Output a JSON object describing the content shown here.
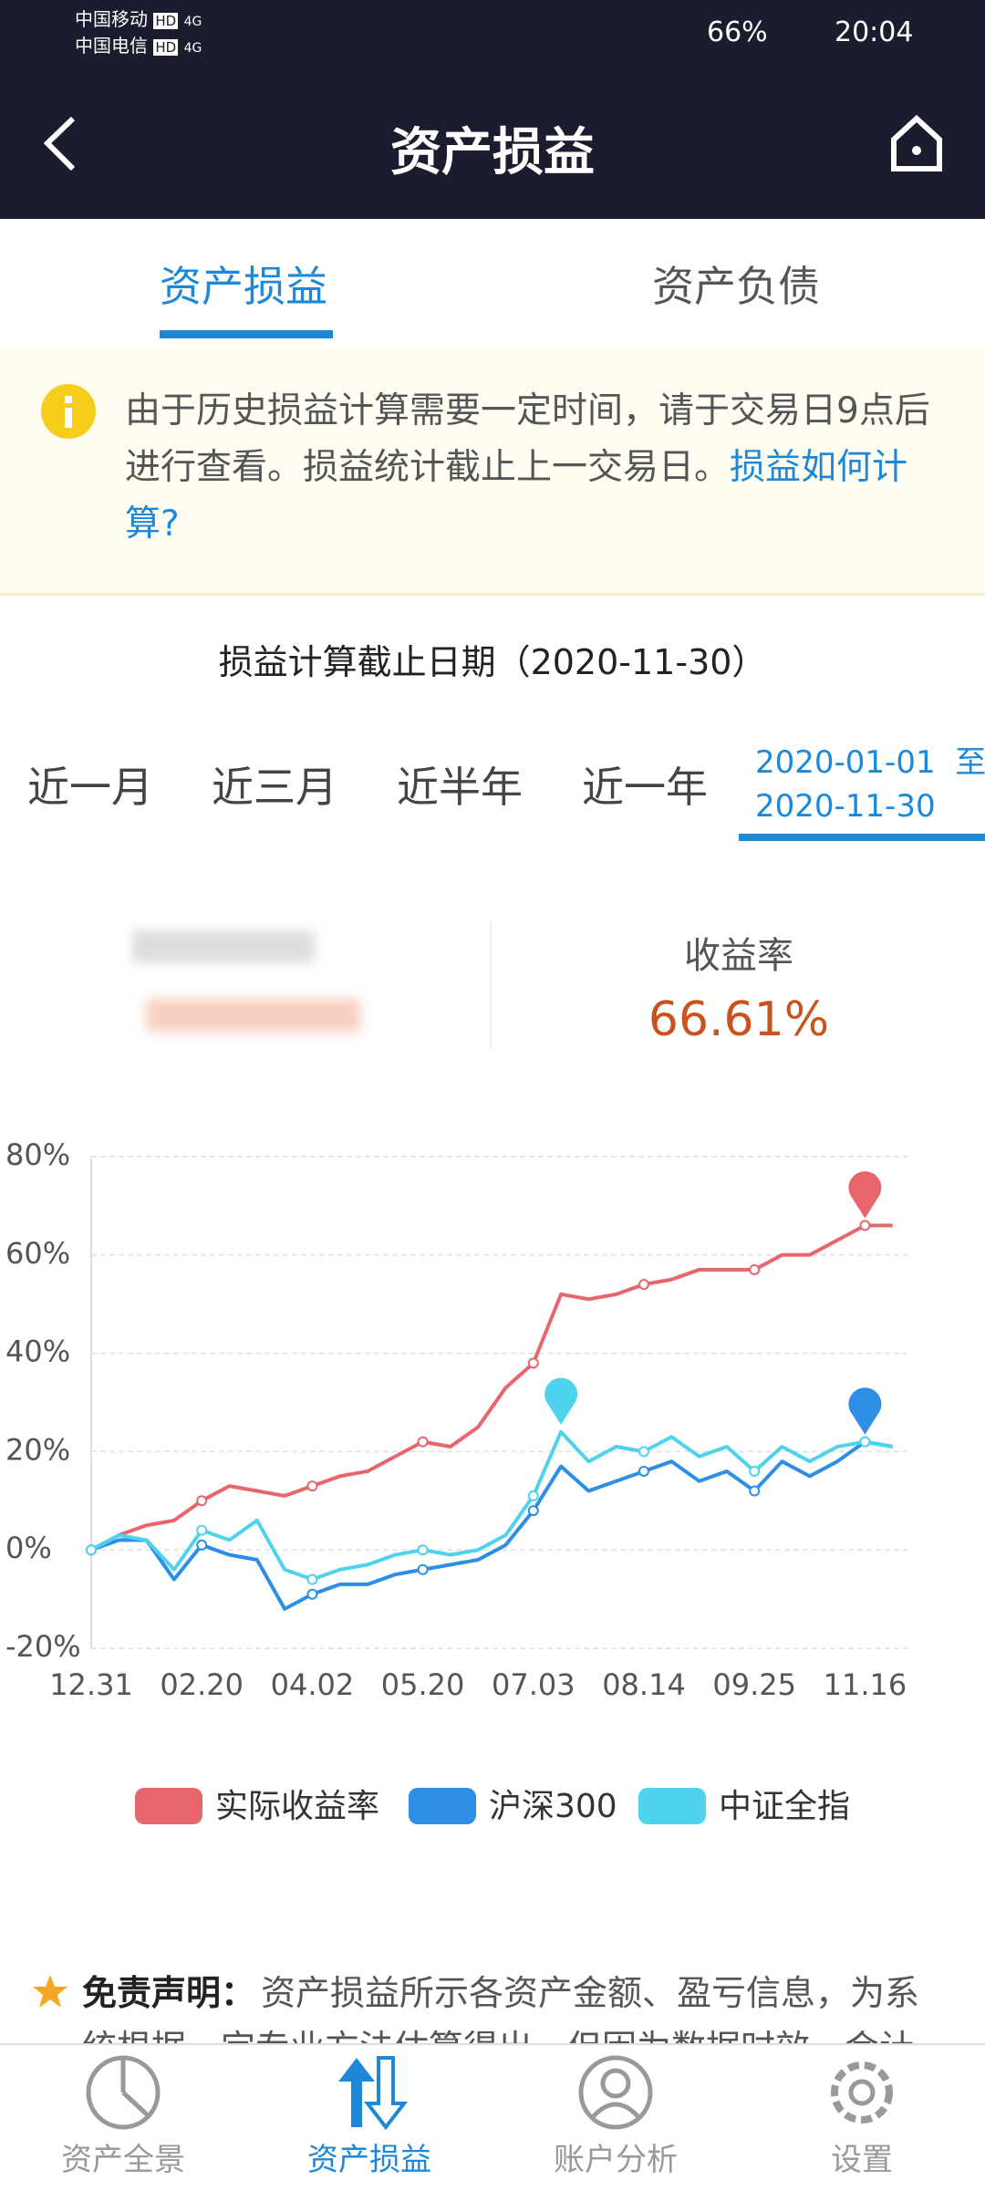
{
  "status_bar": {
    "carrier1": "中国移动",
    "carrier2": "中国电信",
    "badge": "HD",
    "network": "4G",
    "battery": "66%",
    "time": "20:04"
  },
  "header": {
    "title": "资产损益"
  },
  "tabs": [
    "资产损益",
    "资产负债"
  ],
  "notice": {
    "text": "由于历史损益计算需要一定时间，请于交易日9点后进行查看。损益统计截止上一交易日。",
    "link": "损益如何计算?"
  },
  "cutoff_date": "损益计算截止日期（2020-11-30）",
  "periods": [
    "近一月",
    "近三月",
    "近半年",
    "近一年"
  ],
  "custom_range": {
    "start": "2020-01-01",
    "separator": "至",
    "end": "2020-11-30"
  },
  "summary": {
    "label": "收益率",
    "value": "66.61%"
  },
  "chart_data": {
    "type": "line",
    "categories": [
      "12.31",
      null,
      null,
      null,
      "02.20",
      null,
      null,
      null,
      "04.02",
      null,
      null,
      null,
      "05.20",
      null,
      null,
      null,
      "07.03",
      null,
      null,
      null,
      "08.14",
      null,
      null,
      null,
      "09.25",
      null,
      null,
      null,
      "11.16",
      null
    ],
    "series": [
      {
        "name": "实际收益率",
        "color": "#e8666b",
        "values": [
          0,
          3,
          5,
          6,
          10,
          13,
          12,
          11,
          13,
          15,
          16,
          19,
          22,
          21,
          25,
          33,
          38,
          52,
          51,
          52,
          54,
          55,
          57,
          57,
          57,
          60,
          60,
          63,
          66,
          66
        ]
      },
      {
        "name": "沪深300",
        "color": "#2e8ee6",
        "values": [
          0,
          2,
          2,
          -6,
          1,
          -1,
          -2,
          -12,
          -9,
          -7,
          -7,
          -5,
          -4,
          -3,
          -2,
          1,
          8,
          17,
          12,
          14,
          16,
          18,
          14,
          16,
          12,
          18,
          15,
          18,
          22,
          21
        ]
      },
      {
        "name": "中证全指",
        "color": "#4fd3ec",
        "values": [
          0,
          3,
          2,
          -4,
          4,
          2,
          6,
          -4,
          -6,
          -4,
          -3,
          -1,
          0,
          -1,
          0,
          3,
          11,
          24,
          18,
          21,
          20,
          23,
          19,
          21,
          16,
          21,
          18,
          21,
          22,
          21
        ]
      }
    ],
    "ylim": [
      -20,
      80
    ],
    "yticks": [
      {
        "value": -20,
        "label": "-20%"
      },
      {
        "value": 0,
        "label": "0%"
      },
      {
        "value": 20,
        "label": "20%"
      },
      {
        "value": 40,
        "label": "40%"
      },
      {
        "value": 60,
        "label": "60%"
      },
      {
        "value": 80,
        "label": "80%"
      }
    ],
    "grid": true
  },
  "disclaimer": {
    "title": "免责声明：",
    "text": "资产损益所示各资产金额、盈亏信息，为系统根据一定专业方法估算得出，但因为数据时效、会计"
  },
  "bottom_nav": [
    "资产全景",
    "资产损益",
    "账户分析",
    "设置"
  ]
}
